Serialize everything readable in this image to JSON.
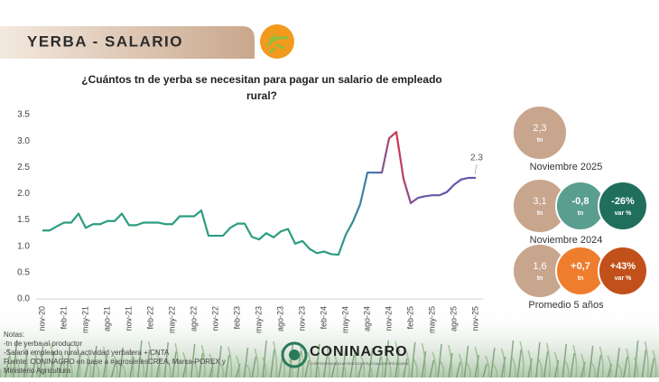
{
  "header": {
    "title": "YERBA - SALARIO"
  },
  "chart_data": {
    "type": "line",
    "title": [
      "¿Cuántos tn de yerba se necesitan para pagar un salario de empleado",
      "rural?"
    ],
    "categories": [
      "nov-20",
      null,
      null,
      "feb-21",
      null,
      null,
      "may-21",
      null,
      null,
      "ago-21",
      null,
      null,
      "nov-21",
      null,
      null,
      "feb-22",
      null,
      null,
      "may-22",
      null,
      null,
      "ago-22",
      null,
      null,
      "nov-22",
      null,
      null,
      "feb-23",
      null,
      null,
      "may-23",
      null,
      null,
      "ago-23",
      null,
      null,
      "nov-23",
      null,
      null,
      "feb-24",
      null,
      null,
      "may-24",
      null,
      null,
      "ago-24",
      null,
      null,
      "nov-24",
      null,
      null,
      "feb-25",
      null,
      null,
      "may-25",
      null,
      null,
      "ago-25",
      null,
      null,
      "nov-25"
    ],
    "values": [
      1.3,
      1.3,
      1.38,
      1.45,
      1.45,
      1.62,
      1.35,
      1.42,
      1.42,
      1.48,
      1.48,
      1.62,
      1.4,
      1.4,
      1.45,
      1.45,
      1.45,
      1.42,
      1.42,
      1.57,
      1.57,
      1.57,
      1.68,
      1.2,
      1.2,
      1.2,
      1.35,
      1.43,
      1.43,
      1.18,
      1.13,
      1.25,
      1.17,
      1.28,
      1.33,
      1.05,
      1.1,
      0.95,
      0.87,
      0.9,
      0.85,
      0.84,
      1.22,
      1.47,
      1.8,
      2.4,
      2.4,
      2.4,
      3.05,
      3.17,
      2.28,
      1.82,
      1.92,
      1.95,
      1.97,
      1.97,
      2.03,
      2.17,
      2.27,
      2.3,
      2.3
    ],
    "colors": [
      "#2a9d7f",
      "#2a9d7f",
      "#4a74b8",
      "#d6314a",
      "#6a5aa8",
      "#5b57a8"
    ],
    "ylim": [
      0,
      3.5
    ],
    "yticks": [
      {
        "value": 0,
        "label": "0.0"
      },
      0.5,
      {
        "value": 1,
        "label": "1.0"
      },
      1.5,
      {
        "value": 2,
        "label": "2.0"
      },
      2.5,
      {
        "value": 3,
        "label": "3.0"
      },
      3.5
    ],
    "grid": false
  },
  "summary": [
    {
      "label": "Noviembre 2025",
      "circles": [
        {
          "value": "2,3",
          "unit": "tn",
          "color": "#c8a58d"
        }
      ]
    },
    {
      "label": "Noviembre 2024",
      "circles": [
        {
          "value": "3,1",
          "unit": "tn",
          "color": "#c8a58d"
        },
        {
          "value": "-0,8",
          "unit": "tn",
          "color": "#5a9e8f"
        },
        {
          "value": "-26%",
          "unit": "var %",
          "color": "#1f6f5c"
        }
      ]
    },
    {
      "label": "Promedio 5 años",
      "circles": [
        {
          "value": "1,6",
          "unit": "tn",
          "color": "#c8a58d"
        },
        {
          "value": "+0,7",
          "unit": "tn",
          "color": "#ef7d2e"
        },
        {
          "value": "+43%",
          "unit": "var %",
          "color": "#c2501a"
        }
      ]
    }
  ],
  "notes": [
    "Notas:",
    "-tn de yerba al productor",
    "-Salario empleado rural actividad yerbatera + CNTA",
    "Fuente: CONINAGRO en base a #agroseriesCREA, Marca-POREX y",
    "Ministerio Agricultura"
  ],
  "logo": {
    "name": "CONINAGRO",
    "tagline": "CONFEDERACIÓN INTERCOOPERATIVA AGROPECUARIA"
  }
}
